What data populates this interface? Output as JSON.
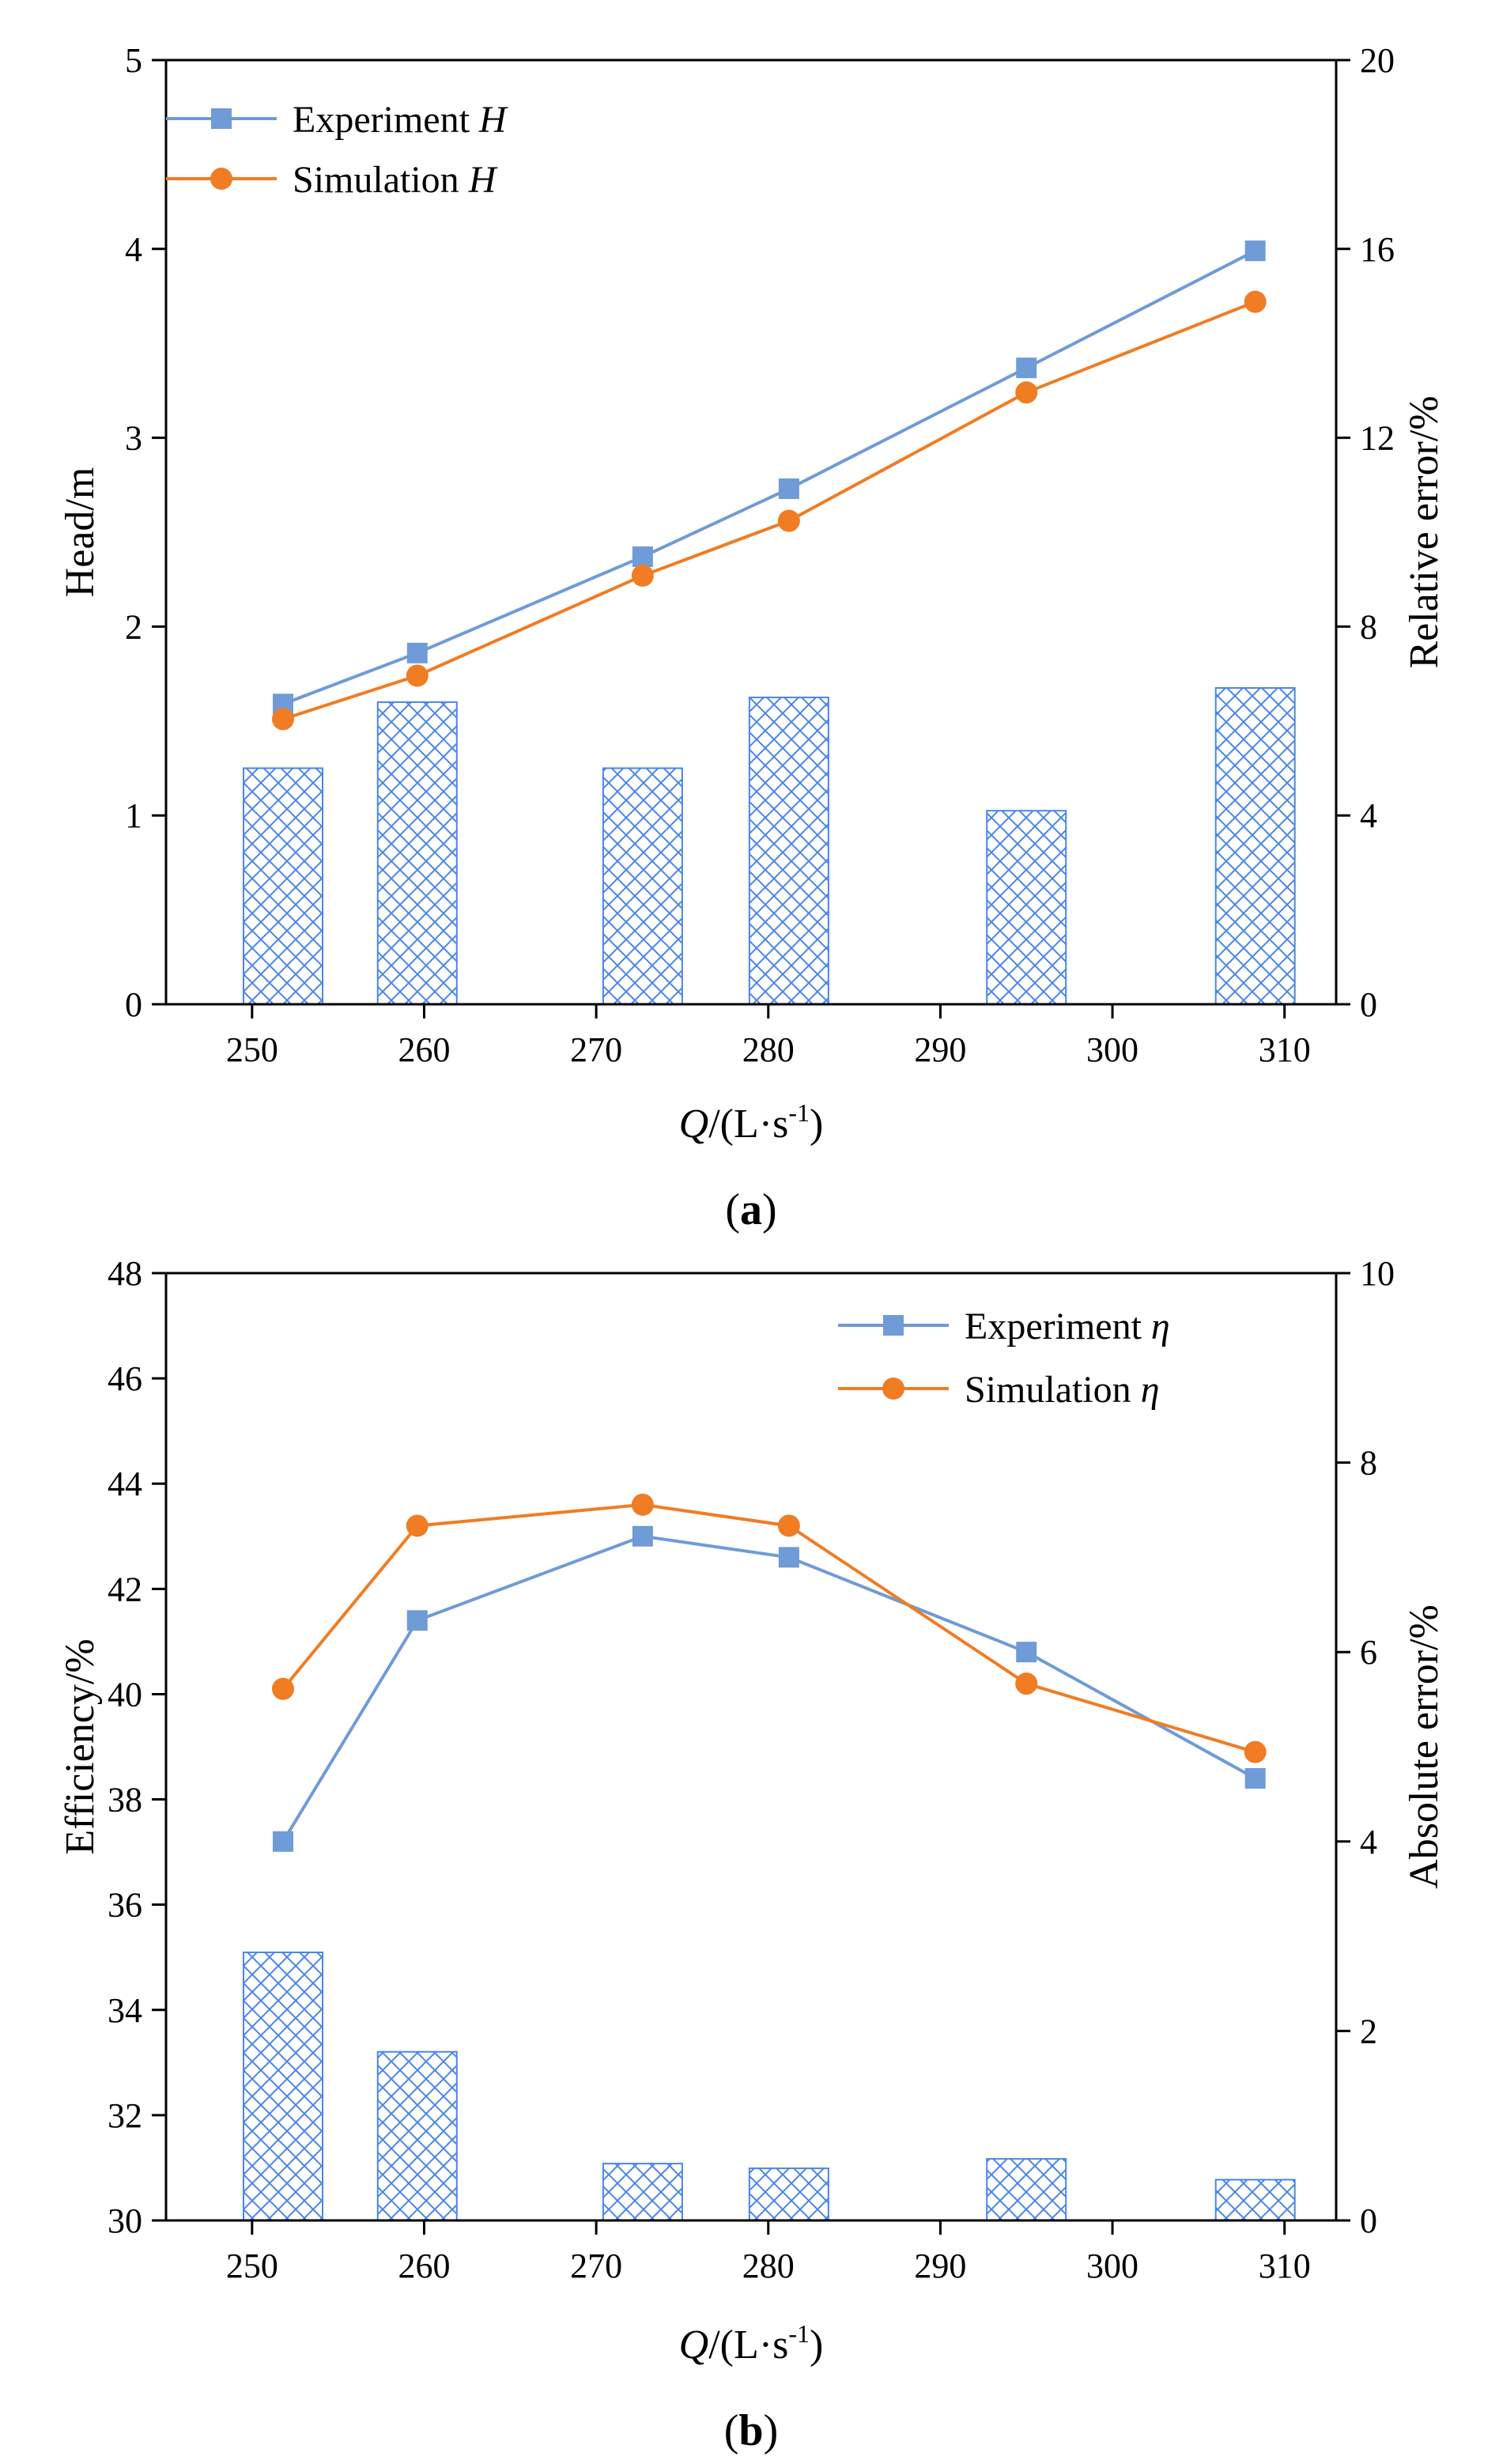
{
  "chart_data": [
    {
      "panel_label": "(a)",
      "panel_letter": "a",
      "type": "bar+line",
      "xlabel": "Q/(L·s-1)",
      "xlabel_parts": {
        "var": "Q",
        "unit_pre": "/(L·s",
        "sup": "-1",
        "unit_post": ")"
      },
      "ylabel_left": "Head/m",
      "ylabel_right": "Relative error/%",
      "xlim": [
        245,
        313
      ],
      "xticks": [
        250,
        260,
        270,
        280,
        290,
        300,
        310
      ],
      "ylim_left": [
        0,
        5
      ],
      "yticks_left": [
        0,
        1,
        2,
        3,
        4,
        5
      ],
      "ylim_right": [
        0,
        20
      ],
      "yticks_right": [
        0,
        4,
        8,
        12,
        16,
        20
      ],
      "legend_position": "top-left",
      "series": [
        {
          "name": "Experiment H",
          "legend_prefix": "Experiment ",
          "legend_symbol": "H",
          "marker": "square",
          "color": "#6f9bd6",
          "x": [
            251.8,
            259.6,
            272.7,
            281.2,
            295.0,
            308.3
          ],
          "y": [
            1.59,
            1.86,
            2.37,
            2.73,
            3.37,
            3.99
          ]
        },
        {
          "name": "Simulation H",
          "legend_prefix": "Simulation ",
          "legend_symbol": "H",
          "marker": "circle",
          "color": "#f07c24",
          "x": [
            251.8,
            259.6,
            272.7,
            281.2,
            295.0,
            308.3
          ],
          "y": [
            1.51,
            1.74,
            2.27,
            2.56,
            3.24,
            3.72
          ]
        }
      ],
      "bars": {
        "name": "Relative error",
        "axis": "right",
        "color": "#4a86e8",
        "x": [
          251.8,
          259.6,
          272.7,
          281.2,
          295.0,
          308.3
        ],
        "values": [
          5.0,
          6.4,
          5.0,
          6.5,
          4.1,
          6.7
        ]
      }
    },
    {
      "panel_label": "(b)",
      "panel_letter": "b",
      "type": "bar+line",
      "xlabel": "Q/(L·s-1)",
      "xlabel_parts": {
        "var": "Q",
        "unit_pre": "/(L·s",
        "sup": "-1",
        "unit_post": ")"
      },
      "ylabel_left": "Efficiency/%",
      "ylabel_right": "Absolute error/%",
      "xlim": [
        245,
        313
      ],
      "xticks": [
        250,
        260,
        270,
        280,
        290,
        300,
        310
      ],
      "ylim_left": [
        30,
        48
      ],
      "yticks_left": [
        30,
        32,
        34,
        36,
        38,
        40,
        42,
        44,
        46,
        48
      ],
      "ylim_right": [
        0,
        10
      ],
      "yticks_right": [
        0,
        2,
        4,
        6,
        8,
        10
      ],
      "legend_position": "top-right",
      "series": [
        {
          "name": "Experiment η",
          "legend_prefix": "Experiment ",
          "legend_symbol": "η",
          "marker": "square",
          "color": "#6f9bd6",
          "x": [
            251.8,
            259.6,
            272.7,
            281.2,
            295.0,
            308.3
          ],
          "y": [
            37.2,
            41.4,
            43.0,
            42.6,
            40.8,
            38.4
          ]
        },
        {
          "name": "Simulation η",
          "legend_prefix": "Simulation ",
          "legend_symbol": "η",
          "marker": "circle",
          "color": "#f07c24",
          "x": [
            251.8,
            259.6,
            272.7,
            281.2,
            295.0,
            308.3
          ],
          "y": [
            40.1,
            43.2,
            43.6,
            43.2,
            40.2,
            38.9
          ]
        }
      ],
      "bars": {
        "name": "Absolute error",
        "axis": "right",
        "color": "#4a86e8",
        "x": [
          251.8,
          259.6,
          272.7,
          281.2,
          295.0,
          308.3
        ],
        "values": [
          2.83,
          1.78,
          0.6,
          0.55,
          0.65,
          0.43
        ]
      }
    }
  ]
}
